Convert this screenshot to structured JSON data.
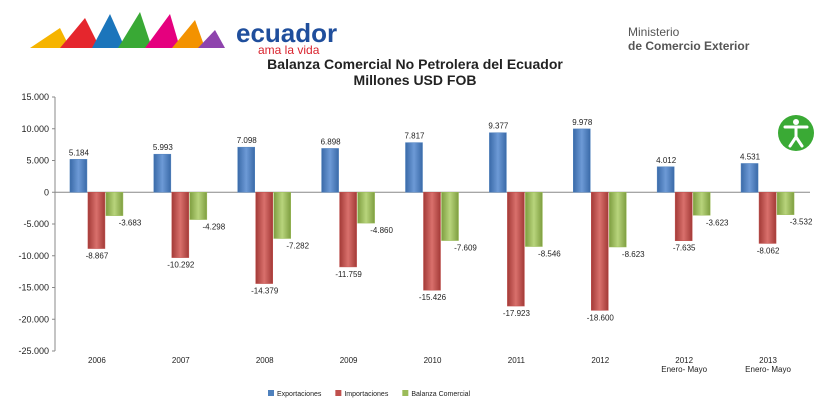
{
  "header": {
    "brand": "ecuador",
    "tagline": "ama la vida",
    "ministry_line1": "Ministerio",
    "ministry_line2": "de Comercio Exterior"
  },
  "chart_data": {
    "type": "bar",
    "title": "Balanza Comercial No Petrolera del Ecuador",
    "subtitle": "Millones USD FOB",
    "categories": [
      "2006",
      "2007",
      "2008",
      "2009",
      "2010",
      "2011",
      "2012",
      "2012\nEnero- Mayo",
      "2013\nEnero- Mayo"
    ],
    "series": [
      {
        "name": "Exportaciones",
        "color": "#4f81bd",
        "values": [
          5184,
          5993,
          7098,
          6898,
          7817,
          9377,
          9978,
          4012,
          4531
        ],
        "value_labels": [
          "5.184",
          "5.993",
          "7.098",
          "6.898",
          "7.817",
          "9.377",
          "9.978",
          "4.012",
          "4.531"
        ]
      },
      {
        "name": "Importaciones",
        "color": "#c0504d",
        "values": [
          -8867,
          -10292,
          -14379,
          -11759,
          -15426,
          -17923,
          -18600,
          -7635,
          -8062
        ],
        "value_labels": [
          "-8.867",
          "-10.292",
          "-14.379",
          "-11.759",
          "-15.426",
          "-17.923",
          "-18.600",
          "-7.635",
          "-8.062"
        ]
      },
      {
        "name": "Balanza Comercial",
        "color": "#9bbb59",
        "values": [
          -3683,
          -4298,
          -7282,
          -4860,
          -7609,
          -8546,
          -8623,
          -3623,
          -3532
        ],
        "value_labels": [
          "-3.683",
          "-4.298",
          "-7.282",
          "-4.860",
          "-7.609",
          "-8.546",
          "-8.623",
          "-3.623",
          "-3.532"
        ]
      }
    ],
    "ylim": [
      -25000,
      15000
    ],
    "yticks": [
      {
        "value": 15000,
        "label": "15.000"
      },
      {
        "value": 10000,
        "label": "10.000"
      },
      {
        "value": 5000,
        "label": "5.000"
      },
      0,
      {
        "value": -5000,
        "label": "-5.000"
      },
      {
        "value": -10000,
        "label": "-10.000"
      },
      {
        "value": -15000,
        "label": "-15.000"
      },
      {
        "value": -20000,
        "label": "-20.000"
      },
      {
        "value": -25000,
        "label": "-25.000"
      }
    ],
    "legend": "bottom"
  }
}
